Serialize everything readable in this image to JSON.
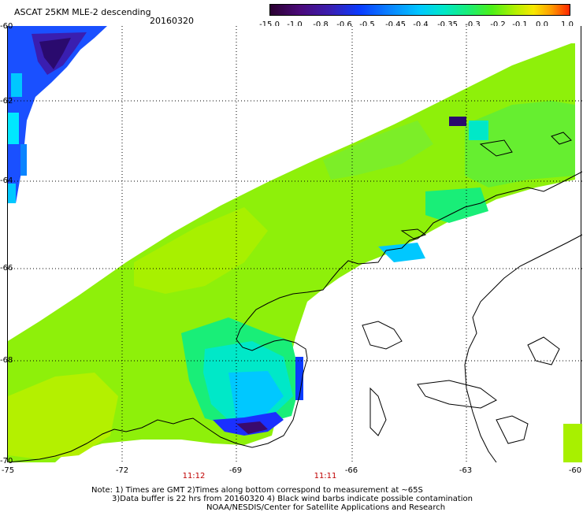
{
  "title": "ASCAT 25KM MLE-2 descending",
  "date": "20160320",
  "colorbar": {
    "ticks": [
      "-15.0",
      "-1.0",
      "-0.8",
      "-0.6",
      "-0.5",
      "-0.45",
      "-0.4",
      "-0.35",
      "-0.3",
      "-0.2",
      "-0.1",
      "0.0",
      "1.0"
    ]
  },
  "axes": {
    "lat_labels": [
      "-60",
      "-62",
      "-64",
      "-66",
      "-68",
      "-70"
    ],
    "lon_labels": [
      "-75",
      "-72",
      "-69",
      "-66",
      "-63",
      "-60"
    ]
  },
  "times": [
    "11:12",
    "11:11"
  ],
  "notes": {
    "line1": "Note: 1) Times are GMT 2)Times along bottom correspond to measurement at ~65S",
    "line2": "3)Data buffer is 22 hrs from 20160320 4) Black wind barbs indicate possible contamination",
    "line3": "NOAA/NESDIS/Center for Satellite Applications and Research"
  },
  "colors": {
    "swath_green": "#8ef00a",
    "swath_lime": "#b4f000",
    "swath_cyan": "#00e8c8",
    "swath_blue": "#0a3cff",
    "swath_purple": "#3a0a6e"
  }
}
